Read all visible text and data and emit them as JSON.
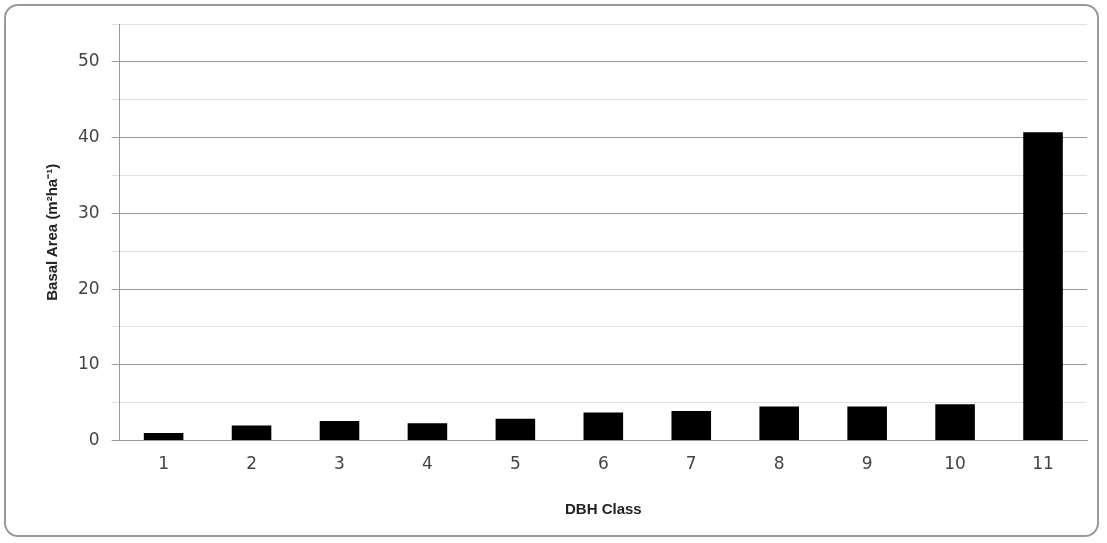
{
  "chart_data": {
    "type": "bar",
    "xlabel": "DBH Class",
    "ylabel": "Basal Area (m²ha⁻¹)",
    "categories": [
      "1",
      "2",
      "3",
      "4",
      "5",
      "6",
      "7",
      "8",
      "9",
      "10",
      "11"
    ],
    "values": [
      1.0,
      2.0,
      2.6,
      2.3,
      2.9,
      3.7,
      3.9,
      4.5,
      4.5,
      4.8,
      40.7
    ],
    "color": "#000000",
    "ylim": [
      0,
      55
    ],
    "yticks": [
      0,
      {
        "value": 5,
        "label": null
      },
      10,
      {
        "value": 15,
        "label": null
      },
      20,
      {
        "value": 25,
        "label": null
      },
      30,
      {
        "value": 35,
        "label": null
      },
      40,
      {
        "value": 45,
        "label": null
      },
      50,
      {
        "value": 55,
        "label": null
      }
    ],
    "grid": "y",
    "legend": false
  }
}
